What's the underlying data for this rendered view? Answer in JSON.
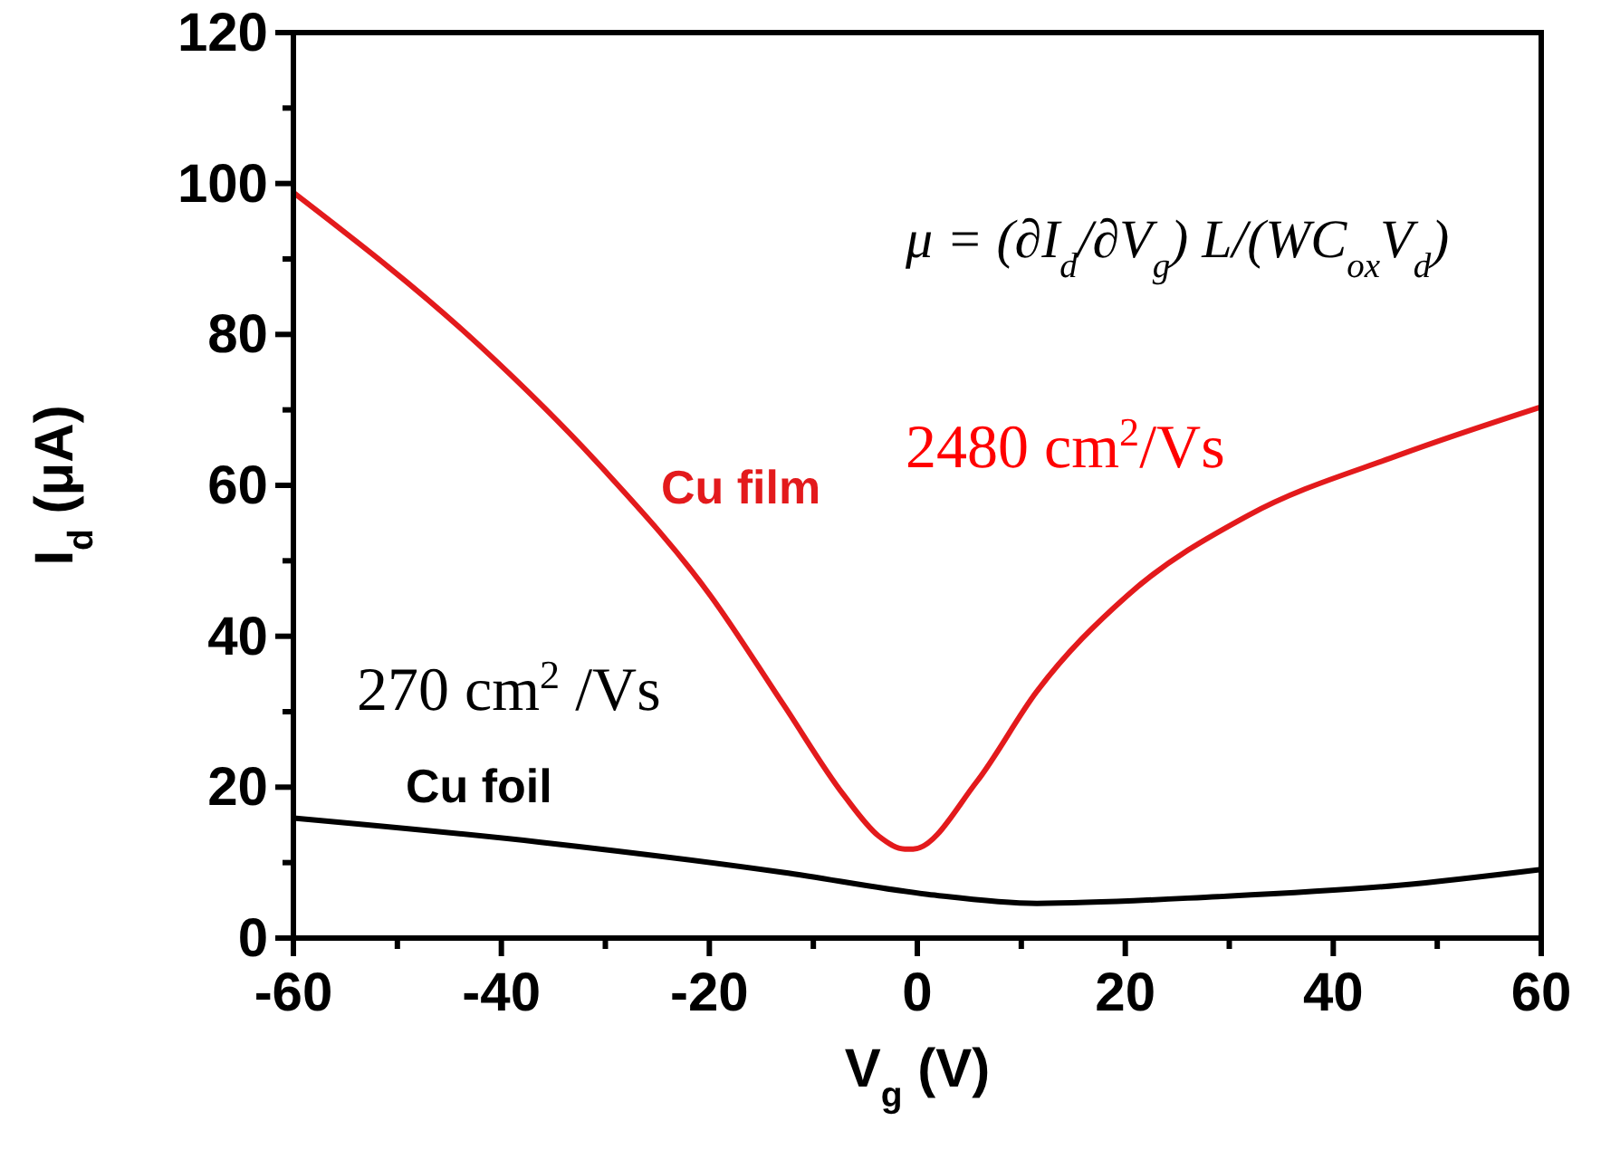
{
  "chart_data": {
    "type": "line",
    "xlabel": "V$_{g}$ (V)",
    "ylabel": "I$_{d}$ (μA)",
    "xlim": [
      -60,
      60
    ],
    "ylim": [
      0,
      120
    ],
    "xticks": [
      -60,
      {
        "value": -50,
        "label": null
      },
      -40,
      {
        "value": -30,
        "label": null
      },
      -20,
      {
        "value": -10,
        "label": null
      },
      0,
      {
        "value": 10,
        "label": null
      },
      20,
      {
        "value": 30,
        "label": null
      },
      40,
      {
        "value": 50,
        "label": null
      },
      60
    ],
    "yticks": [
      0,
      {
        "value": 10,
        "label": null
      },
      20,
      {
        "value": 30,
        "label": null
      },
      40,
      {
        "value": 50,
        "label": null
      },
      60,
      {
        "value": 70,
        "label": null
      },
      80,
      {
        "value": 90,
        "label": null
      },
      100,
      {
        "value": 110,
        "label": null
      },
      120
    ],
    "grid": false,
    "marker": "none",
    "line_style": "solid",
    "series": [
      {
        "name": "Cu film",
        "color": "#e31a1c",
        "x": [
          -60,
          -42,
          -30.3,
          -19.9,
          -12.9,
          -7.1,
          -3.7,
          -1.2,
          -0.4,
          5.7,
          11.5,
          20.2,
          31.8,
          46.3,
          60
        ],
        "values": [
          98.8,
          78.4,
          62.3,
          45.4,
          31,
          19,
          13.5,
          11.8,
          11.8,
          20.7,
          32.7,
          45.4,
          56,
          64,
          70.4
        ]
      },
      {
        "name": "Cu foil",
        "color": "#000000",
        "x": [
          -60,
          -36.2,
          -12.9,
          1,
          11.5,
          28.9,
          46.3,
          60
        ],
        "values": [
          15.9,
          12.7,
          8.7,
          5.8,
          4.6,
          5.5,
          7,
          9.1
        ]
      }
    ],
    "annotations": [
      "μ = (∂I$_{d}$/∂V$_{g}$) L/(WC$_{ox}$V$_{d}$)",
      "2480 cm$^{2}$/Vs",
      "270 cm$^{2}$ /Vs"
    ]
  }
}
